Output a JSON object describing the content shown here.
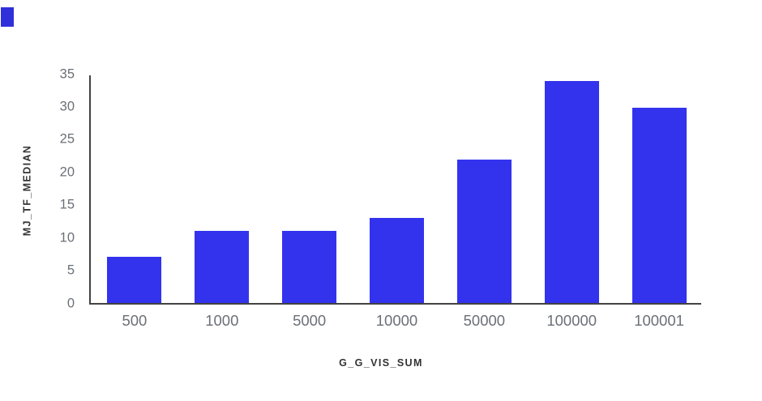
{
  "chart_data": {
    "type": "bar",
    "categories": [
      "500",
      "1000",
      "5000",
      "10000",
      "50000",
      "100000",
      "100001"
    ],
    "values": [
      7.0,
      11.0,
      11.0,
      13.0,
      21.9,
      33.9,
      29.8
    ],
    "xlabel": "G_G_VIS_SUM",
    "ylabel": "MJ_TF_MEDIAN",
    "ylim": [
      0,
      35
    ],
    "yticks": [
      0,
      5,
      10,
      15,
      20,
      25,
      30,
      35
    ],
    "grid": false,
    "legend_position": "none",
    "bar_color": "#3333EE",
    "axis_line_color": "#424242",
    "tick_label_color": "#6B7077",
    "axis_title_color": "#333333"
  },
  "decorations": {
    "corner_fragment_color": "#3030DB"
  }
}
